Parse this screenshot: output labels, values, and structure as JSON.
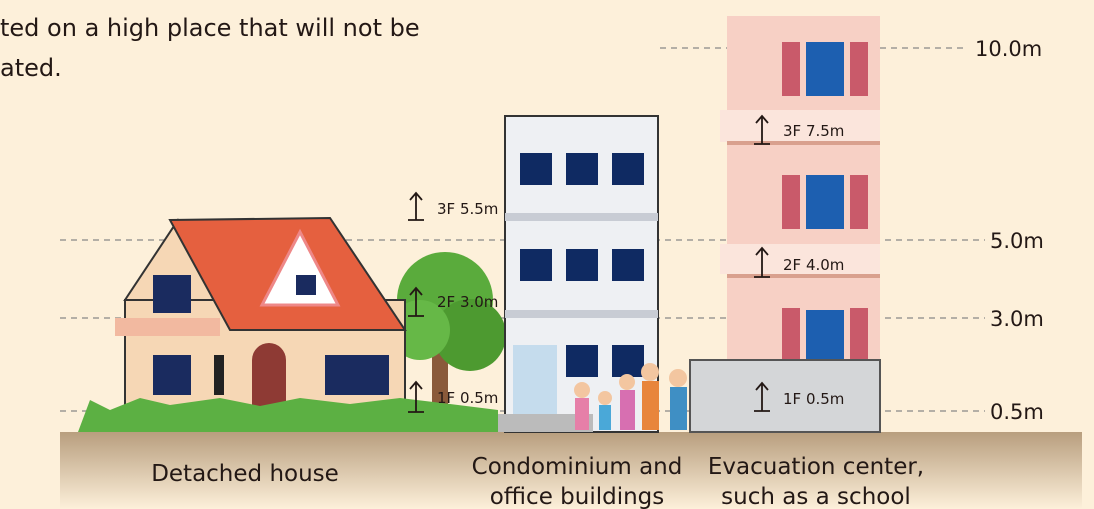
{
  "intro": {
    "lines": [
      "ted on a high place that will not be",
      "ated."
    ]
  },
  "levels": [
    {
      "label": "10.0m"
    },
    {
      "label": "5.0m"
    },
    {
      "label": "3.0m"
    },
    {
      "label": "0.5m"
    }
  ],
  "buildings": [
    {
      "caption": [
        "Detached house"
      ],
      "floors": []
    },
    {
      "caption": [
        "Condominium and",
        "office buildings"
      ],
      "floors": [
        "3F 5.5m",
        "2F 3.0m",
        "1F 0.5m"
      ]
    },
    {
      "caption": [
        "Evacuation center,",
        "such as a school"
      ],
      "floors": [
        "3F 7.5m",
        "2F 4.0m",
        "1F 0.5m"
      ]
    }
  ]
}
